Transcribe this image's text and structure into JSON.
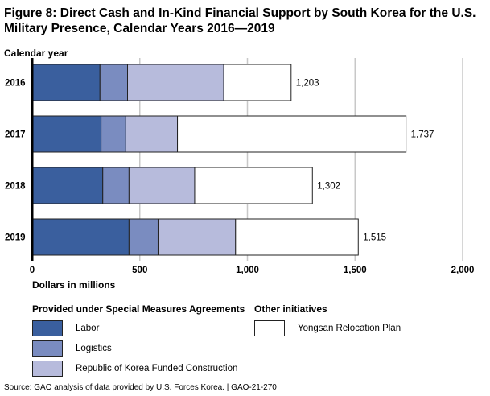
{
  "figure": {
    "title": "Figure 8: Direct Cash and In-Kind Financial Support by South Korea for the U.S. Military Presence, Calendar Years 2016—2019",
    "source": "Source: GAO analysis of data provided by U.S. Forces Korea.  |  GAO-21-270"
  },
  "legend": {
    "sma_heading": "Provided under Special Measures Agreements",
    "other_heading": "Other initiatives",
    "labor": "Labor",
    "logistics": "Logistics",
    "construction": "Republic of Korea Funded Construction",
    "yongsan": "Yongsan Relocation Plan"
  },
  "colors": {
    "labor": "#3a5f9e",
    "logistics": "#7a8cc0",
    "construction": "#b7bbdc",
    "yongsan": "#ffffff",
    "gridline": "#c8c8c8"
  },
  "chart_data": {
    "type": "bar",
    "orientation": "horizontal",
    "stacked": true,
    "categories": [
      "2016",
      "2017",
      "2018",
      "2019"
    ],
    "series": [
      {
        "name": "Labor",
        "color_key": "labor",
        "values": [
          315,
          320,
          328,
          450
        ]
      },
      {
        "name": "Logistics",
        "color_key": "logistics",
        "values": [
          128,
          115,
          122,
          135
        ]
      },
      {
        "name": "Republic of Korea Funded Construction",
        "color_key": "construction",
        "values": [
          447,
          240,
          305,
          360
        ]
      },
      {
        "name": "Yongsan Relocation Plan",
        "color_key": "yongsan",
        "values": [
          313,
          1062,
          547,
          570
        ]
      }
    ],
    "totals": [
      "1,203",
      "1,737",
      "1,302",
      "1,515"
    ],
    "xlabel": "Dollars in millions",
    "ylabel": "Calendar year",
    "xlim": [
      0,
      2000
    ],
    "xticks": [
      0,
      500,
      1000,
      1500,
      2000
    ],
    "xtick_labels": [
      "0",
      "500",
      "1,000",
      "1,500",
      "2,000"
    ],
    "grid": "vertical",
    "legend_position": "bottom"
  }
}
